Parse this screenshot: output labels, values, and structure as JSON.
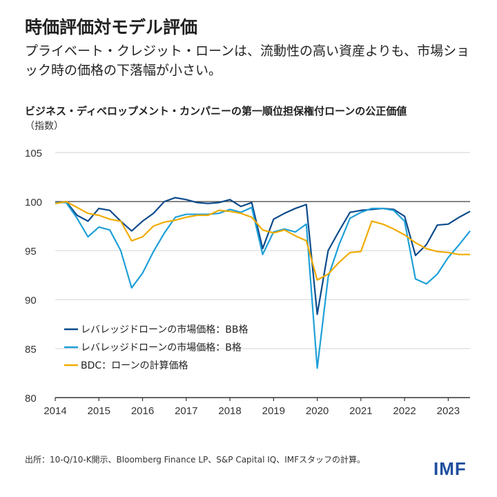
{
  "header": {
    "title": "時価評価対モデル評価",
    "subtitle": "プライベート・クレジット・ローンは、流動性の高い資産よりも、市場ショック時の価格の下落幅が小さい。"
  },
  "footer": {
    "source": "出所：10-Q/10-K開示、Bloomberg Finance LP、S&P Capital IQ、IMFスタッフの計算。",
    "logo": "IMF"
  },
  "chart_data": {
    "type": "line",
    "title": "ビジネス・ディベロップメント・カンパニーの第一順位担保権付ローンの公正価値",
    "ylabel": "（指数）",
    "xlim": [
      2014,
      2023.5
    ],
    "ylim": [
      80,
      105
    ],
    "yticks": [
      80,
      85,
      90,
      95,
      100,
      105
    ],
    "xticks": [
      2014,
      2015,
      2016,
      2017,
      2018,
      2019,
      2020,
      2021,
      2022,
      2023
    ],
    "reference_line": 100,
    "grid": true,
    "legend_placement": "bottom-left",
    "x_start": 2014,
    "x_step": 0.25,
    "series": [
      {
        "name": "レバレッジドローンの市場価格：BB格",
        "color": "#0b4a8b",
        "values": [
          99.8,
          100,
          98.6,
          98.0,
          99.3,
          99.1,
          98.0,
          97.0,
          98.0,
          98.8,
          100,
          100.4,
          100.2,
          99.9,
          99.8,
          99.9,
          100.2,
          99.5,
          99.9,
          95.2,
          98.2,
          98.8,
          99.3,
          99.7,
          88.5,
          95.0,
          97.0,
          98.9,
          99.1,
          99.2,
          99.3,
          99.2,
          98.5,
          94.5,
          95.6,
          97.6,
          97.7,
          98.4,
          99.0
        ]
      },
      {
        "name": "レバレッジドローンの市場価格：B格",
        "color": "#1e9fd8",
        "values": [
          99.9,
          99.9,
          98.3,
          96.4,
          97.4,
          97.1,
          95.0,
          91.2,
          92.7,
          94.9,
          96.8,
          98.4,
          98.7,
          98.7,
          98.7,
          98.8,
          99.2,
          98.9,
          99.4,
          94.6,
          96.9,
          97.2,
          96.9,
          97.7,
          83.0,
          92.3,
          95.6,
          98.3,
          98.9,
          99.3,
          99.3,
          99.1,
          98.0,
          92.1,
          91.6,
          92.6,
          94.3,
          95.6,
          97.0
        ]
      },
      {
        "name": "BDC：ローンの計算価格",
        "color": "#efab00",
        "values": [
          99.8,
          100,
          99.4,
          98.8,
          98.6,
          98.2,
          98.0,
          96.0,
          96.4,
          97.5,
          97.9,
          98.1,
          98.4,
          98.6,
          98.6,
          99.1,
          99.0,
          98.8,
          98.4,
          97.1,
          96.8,
          97.1,
          96.5,
          96.0,
          92.0,
          92.6,
          93.8,
          94.8,
          94.9,
          98.0,
          97.7,
          97.2,
          96.6,
          95.8,
          95.2,
          94.9,
          94.8,
          94.6,
          94.6
        ]
      }
    ]
  }
}
